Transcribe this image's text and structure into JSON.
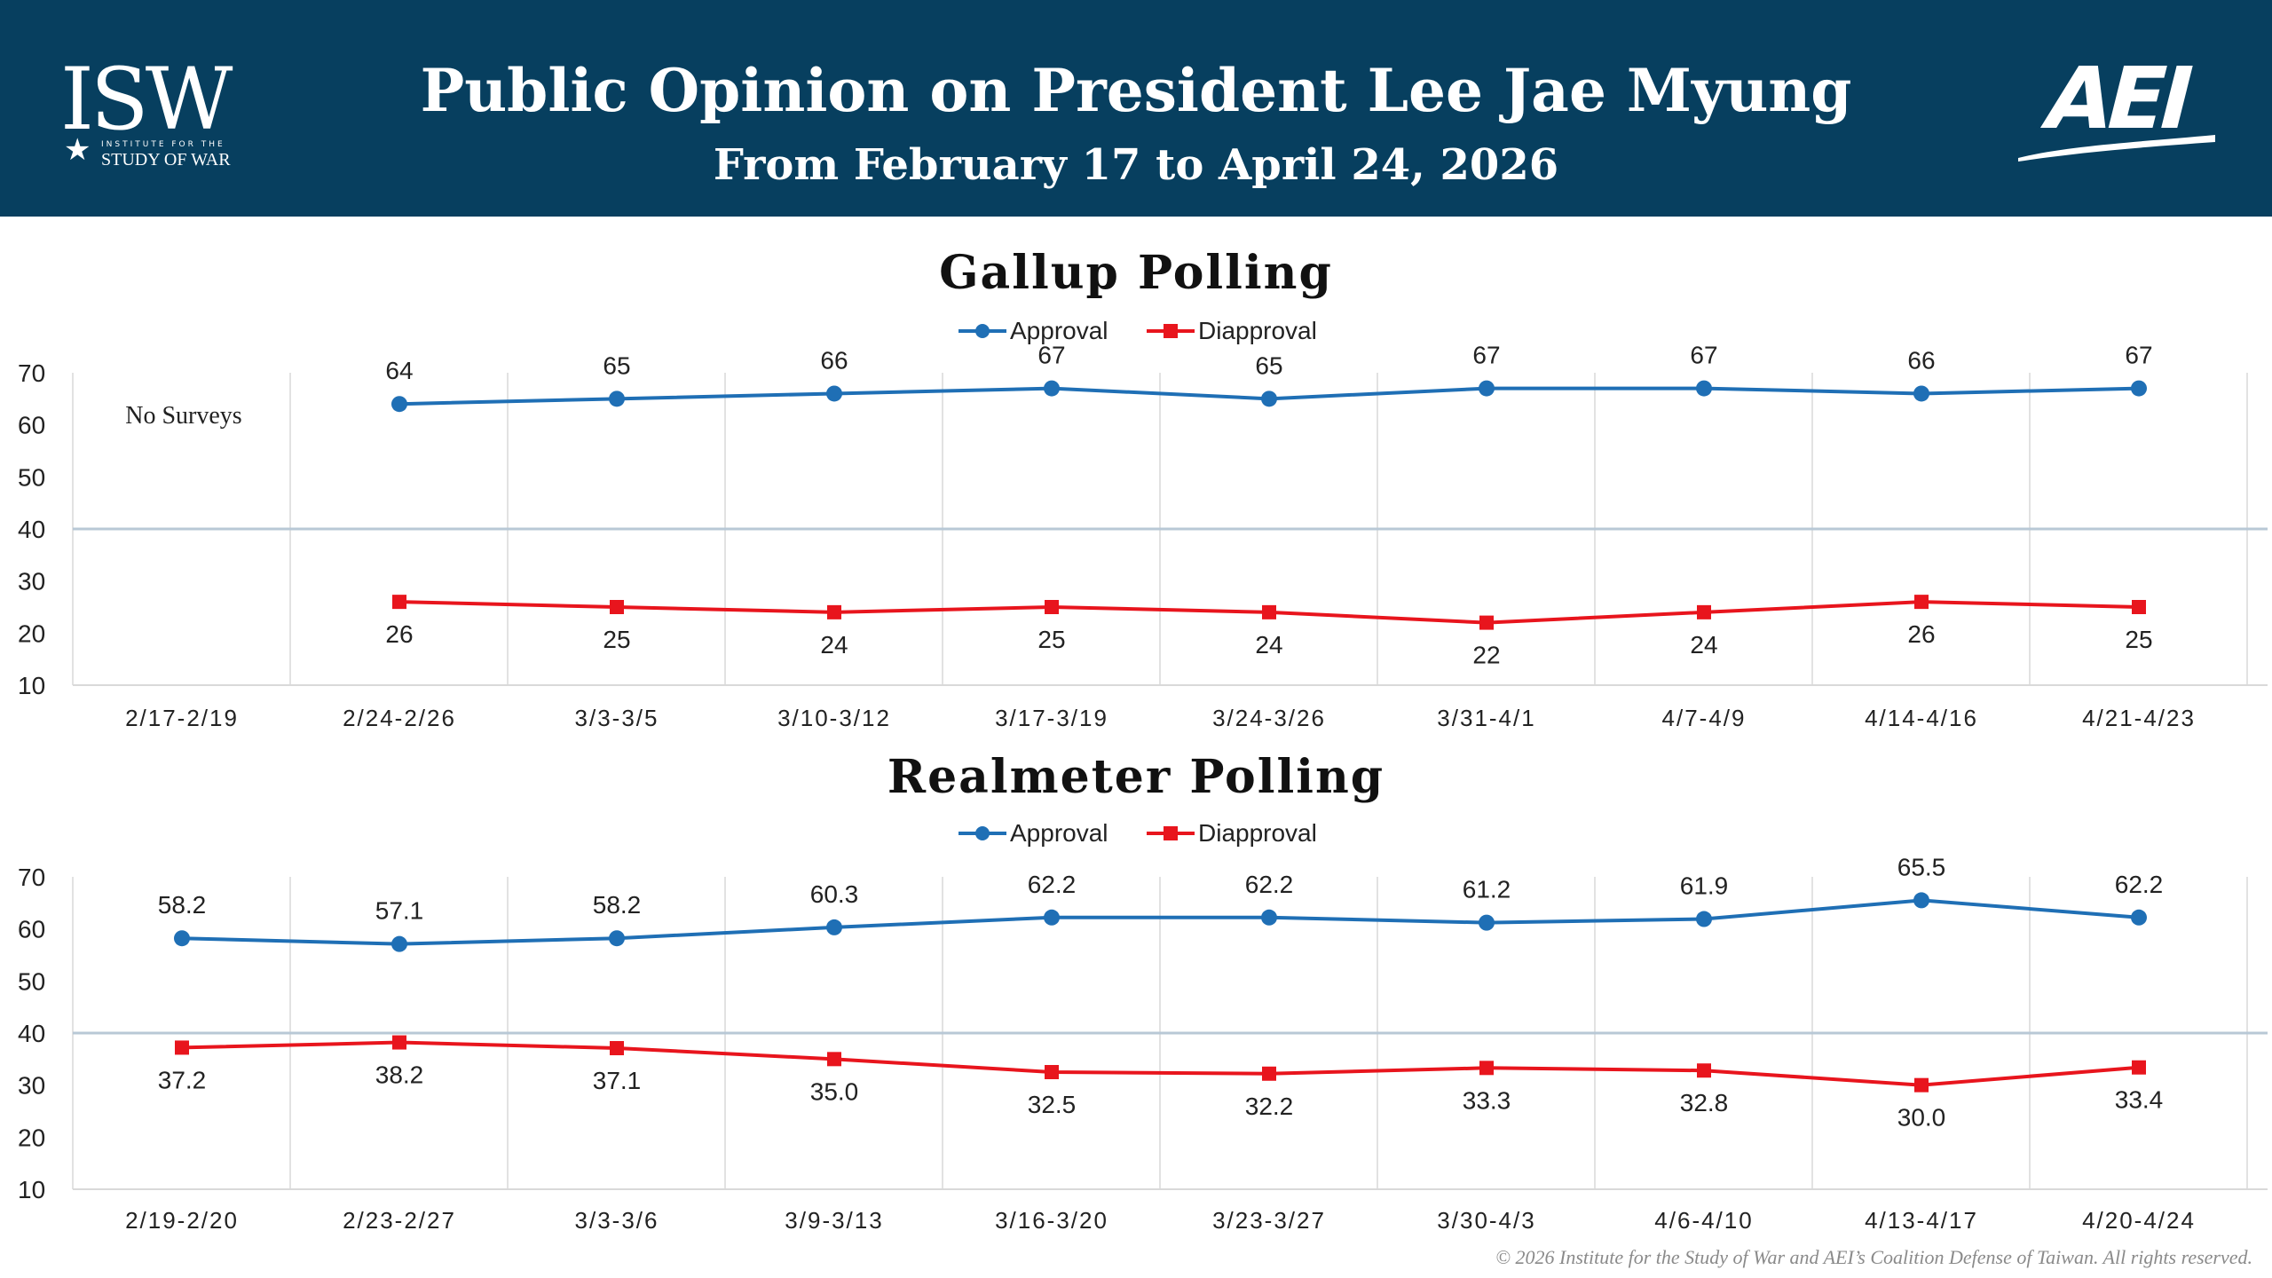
{
  "header": {
    "logo_left_letters": "ISW",
    "logo_left_line1": "INSTITUTE FOR THE",
    "logo_left_line2": "STUDY OF WAR",
    "title": "Public Opinion on President Lee Jae Myung",
    "subtitle": "From February 17 to April 24, 2026",
    "logo_right_letters": "AEI"
  },
  "footer": {
    "copyright": "© 2026 Institute for the Study of War and AEI’s Coalition Defense of Taiwan. All rights reserved."
  },
  "colors": {
    "header_bg": "#073f5f",
    "approval": "#1f6fb5",
    "disapproval": "#e8151d",
    "grid": "#d9d9d9"
  },
  "chart_data": [
    {
      "type": "line",
      "title": "Gallup Polling",
      "categories": [
        "2/17-2/19",
        "2/24-2/26",
        "3/3-3/5",
        "3/10-3/12",
        "3/17-3/19",
        "3/24-3/26",
        "3/31-4/1",
        "4/7-4/9",
        "4/14-4/16",
        "4/21-4/23"
      ],
      "series": [
        {
          "name": "Approval",
          "marker": "circle",
          "color": "#1f6fb5",
          "values": [
            null,
            64,
            65,
            66,
            67,
            65,
            67,
            67,
            66,
            67
          ],
          "labels": [
            "",
            "64",
            "65",
            "66",
            "67",
            "65",
            "67",
            "67",
            "66",
            "67"
          ]
        },
        {
          "name": "Diapproval",
          "marker": "square",
          "color": "#e8151d",
          "values": [
            null,
            26,
            25,
            24,
            25,
            24,
            22,
            24,
            26,
            25
          ],
          "labels": [
            "",
            "26",
            "25",
            "24",
            "25",
            "24",
            "22",
            "24",
            "26",
            "25"
          ]
        }
      ],
      "annotation": "No Surveys",
      "ylim": [
        10,
        70
      ],
      "yticks": [
        "70",
        "60",
        "50",
        "40",
        "30",
        "20",
        "10"
      ],
      "reference_line": 40,
      "legend": "top-center",
      "grid": "vertical"
    },
    {
      "type": "line",
      "title": "Realmeter Polling",
      "categories": [
        "2/19-2/20",
        "2/23-2/27",
        "3/3-3/6",
        "3/9-3/13",
        "3/16-3/20",
        "3/23-3/27",
        "3/30-4/3",
        "4/6-4/10",
        "4/13-4/17",
        "4/20-4/24"
      ],
      "series": [
        {
          "name": "Approval",
          "marker": "circle",
          "color": "#1f6fb5",
          "values": [
            58.2,
            57.1,
            58.2,
            60.3,
            62.2,
            62.2,
            61.2,
            61.9,
            65.5,
            62.2
          ],
          "labels": [
            "58.2",
            "57.1",
            "58.2",
            "60.3",
            "62.2",
            "62.2",
            "61.2",
            "61.9",
            "65.5",
            "62.2"
          ]
        },
        {
          "name": "Diapproval",
          "marker": "square",
          "color": "#e8151d",
          "values": [
            37.2,
            38.2,
            37.1,
            35.0,
            32.5,
            32.2,
            33.3,
            32.8,
            30.0,
            33.4
          ],
          "labels": [
            "37.2",
            "38.2",
            "37.1",
            "35.0",
            "32.5",
            "32.2",
            "33.3",
            "32.8",
            "30.0",
            "33.4"
          ]
        }
      ],
      "ylim": [
        10,
        70
      ],
      "yticks": [
        "70",
        "60",
        "50",
        "40",
        "30",
        "20",
        "10"
      ],
      "reference_line": 40,
      "legend": "top-center",
      "grid": "vertical"
    }
  ]
}
